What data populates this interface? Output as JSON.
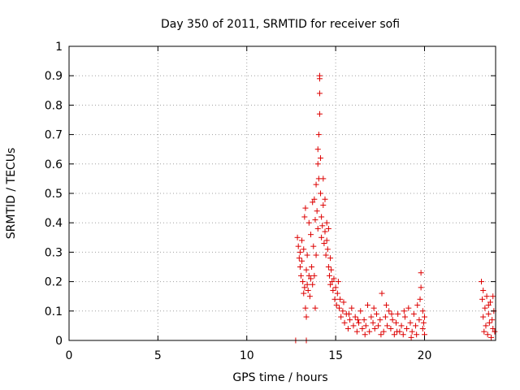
{
  "chart_data": {
    "type": "scatter",
    "title": "Day 350 of 2011, SRMTID for receiver sofi",
    "xlabel": "GPS time / hours",
    "ylabel": "SRMTID / TECUs",
    "xlim": [
      0,
      24
    ],
    "ylim": [
      0,
      1
    ],
    "xticks": [
      0,
      5,
      10,
      15,
      20
    ],
    "xtick_labels": [
      "0",
      "5",
      "10",
      "15",
      "20"
    ],
    "yticks": [
      0,
      0.1,
      0.2,
      0.3,
      0.4,
      0.5,
      0.6,
      0.7,
      0.8,
      0.9,
      1
    ],
    "ytick_labels": [
      "0",
      "0.1",
      "0.2",
      "0.3",
      "0.4",
      "0.5",
      "0.6",
      "0.7",
      "0.8",
      "0.9",
      "1"
    ],
    "grid": true,
    "marker": "plus",
    "color": "#dd0000",
    "series": [
      {
        "name": "sofi",
        "points": [
          [
            12.75,
            0.0
          ],
          [
            13.35,
            0.0
          ],
          [
            12.85,
            0.35
          ],
          [
            12.9,
            0.32
          ],
          [
            12.95,
            0.28
          ],
          [
            13.0,
            0.25
          ],
          [
            13.0,
            0.3
          ],
          [
            13.05,
            0.22
          ],
          [
            13.1,
            0.27
          ],
          [
            13.1,
            0.34
          ],
          [
            13.15,
            0.2
          ],
          [
            13.2,
            0.16
          ],
          [
            13.2,
            0.31
          ],
          [
            13.25,
            0.18
          ],
          [
            13.25,
            0.42
          ],
          [
            13.3,
            0.45
          ],
          [
            13.3,
            0.11
          ],
          [
            13.35,
            0.24
          ],
          [
            13.35,
            0.08
          ],
          [
            13.4,
            0.19
          ],
          [
            13.4,
            0.29
          ],
          [
            13.45,
            0.17
          ],
          [
            13.5,
            0.22
          ],
          [
            13.5,
            0.4
          ],
          [
            13.55,
            0.15
          ],
          [
            13.6,
            0.21
          ],
          [
            13.6,
            0.36
          ],
          [
            13.65,
            0.25
          ],
          [
            13.7,
            0.19
          ],
          [
            13.7,
            0.47
          ],
          [
            13.75,
            0.32
          ],
          [
            13.8,
            0.48
          ],
          [
            13.8,
            0.22
          ],
          [
            13.85,
            0.41
          ],
          [
            13.85,
            0.11
          ],
          [
            13.9,
            0.29
          ],
          [
            13.9,
            0.53
          ],
          [
            13.95,
            0.44
          ],
          [
            14.0,
            0.6
          ],
          [
            14.0,
            0.65
          ],
          [
            14.0,
            0.38
          ],
          [
            14.05,
            0.7
          ],
          [
            14.05,
            0.55
          ],
          [
            14.1,
            0.77
          ],
          [
            14.1,
            0.84
          ],
          [
            14.1,
            0.9
          ],
          [
            14.1,
            0.89
          ],
          [
            14.15,
            0.62
          ],
          [
            14.15,
            0.5
          ],
          [
            14.2,
            0.42
          ],
          [
            14.2,
            0.35
          ],
          [
            14.25,
            0.39
          ],
          [
            14.3,
            0.46
          ],
          [
            14.3,
            0.55
          ],
          [
            14.35,
            0.33
          ],
          [
            14.4,
            0.48
          ],
          [
            14.4,
            0.37
          ],
          [
            14.45,
            0.29
          ],
          [
            14.5,
            0.4
          ],
          [
            14.5,
            0.34
          ],
          [
            14.55,
            0.31
          ],
          [
            14.6,
            0.25
          ],
          [
            14.6,
            0.38
          ],
          [
            14.65,
            0.22
          ],
          [
            14.7,
            0.28
          ],
          [
            14.7,
            0.19
          ],
          [
            14.75,
            0.24
          ],
          [
            14.8,
            0.2
          ],
          [
            14.85,
            0.17
          ],
          [
            14.9,
            0.21
          ],
          [
            14.95,
            0.14
          ],
          [
            15.0,
            0.18
          ],
          [
            15.05,
            0.12
          ],
          [
            15.1,
            0.16
          ],
          [
            15.15,
            0.2
          ],
          [
            15.2,
            0.11
          ],
          [
            15.25,
            0.14
          ],
          [
            15.3,
            0.08
          ],
          [
            15.4,
            0.1
          ],
          [
            15.5,
            0.06
          ],
          [
            15.6,
            0.09
          ],
          [
            15.7,
            0.04
          ],
          [
            15.8,
            0.07
          ],
          [
            15.9,
            0.11
          ],
          [
            16.0,
            0.05
          ],
          [
            16.1,
            0.08
          ],
          [
            16.2,
            0.03
          ],
          [
            16.3,
            0.06
          ],
          [
            16.4,
            0.1
          ],
          [
            16.5,
            0.04
          ],
          [
            16.6,
            0.07
          ],
          [
            16.7,
            0.05
          ],
          [
            16.8,
            0.12
          ],
          [
            16.9,
            0.03
          ],
          [
            17.0,
            0.08
          ],
          [
            17.1,
            0.06
          ],
          [
            17.2,
            0.04
          ],
          [
            17.3,
            0.09
          ],
          [
            17.4,
            0.05
          ],
          [
            17.5,
            0.07
          ],
          [
            17.6,
            0.16
          ],
          [
            17.7,
            0.03
          ],
          [
            17.8,
            0.08
          ],
          [
            17.9,
            0.05
          ],
          [
            18.0,
            0.1
          ],
          [
            18.1,
            0.04
          ],
          [
            18.2,
            0.07
          ],
          [
            18.3,
            0.02
          ],
          [
            18.4,
            0.06
          ],
          [
            18.5,
            0.09
          ],
          [
            18.6,
            0.03
          ],
          [
            18.7,
            0.05
          ],
          [
            18.8,
            0.02
          ],
          [
            18.9,
            0.08
          ],
          [
            19.0,
            0.04
          ],
          [
            19.1,
            0.11
          ],
          [
            19.2,
            0.06
          ],
          [
            19.3,
            0.03
          ],
          [
            19.4,
            0.09
          ],
          [
            19.5,
            0.05
          ],
          [
            19.6,
            0.12
          ],
          [
            19.7,
            0.07
          ],
          [
            19.8,
            0.18
          ],
          [
            19.8,
            0.23
          ],
          [
            19.9,
            0.04
          ],
          [
            19.9,
            0.1
          ],
          [
            20.0,
            0.02
          ],
          [
            20.0,
            0.08
          ],
          [
            15.45,
            0.13
          ],
          [
            15.75,
            0.09
          ],
          [
            16.25,
            0.07
          ],
          [
            16.65,
            0.02
          ],
          [
            17.15,
            0.11
          ],
          [
            17.55,
            0.02
          ],
          [
            17.85,
            0.12
          ],
          [
            18.15,
            0.09
          ],
          [
            18.45,
            0.03
          ],
          [
            18.85,
            0.1
          ],
          [
            19.25,
            0.01
          ],
          [
            19.55,
            0.02
          ],
          [
            19.75,
            0.14
          ],
          [
            19.95,
            0.06
          ],
          [
            23.2,
            0.2
          ],
          [
            23.25,
            0.14
          ],
          [
            23.3,
            0.08
          ],
          [
            23.35,
            0.03
          ],
          [
            23.4,
            0.11
          ],
          [
            23.45,
            0.05
          ],
          [
            23.5,
            0.15
          ],
          [
            23.55,
            0.02
          ],
          [
            23.6,
            0.09
          ],
          [
            23.65,
            0.06
          ],
          [
            23.7,
            0.13
          ],
          [
            23.75,
            0.01
          ],
          [
            23.8,
            0.07
          ],
          [
            23.85,
            0.04
          ],
          [
            23.9,
            0.1
          ],
          [
            23.95,
            0.03
          ],
          [
            23.3,
            0.17
          ],
          [
            23.6,
            0.12
          ],
          [
            23.85,
            0.15
          ]
        ]
      }
    ]
  }
}
